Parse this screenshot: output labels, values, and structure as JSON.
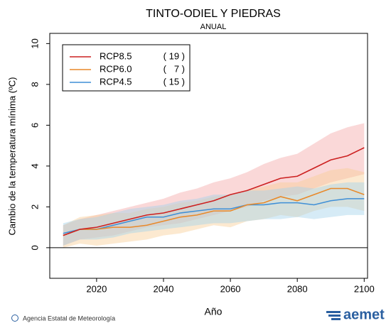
{
  "chart_data": {
    "type": "line",
    "title": "TINTO-ODIEL Y PIEDRAS",
    "subtitle": "ANUAL",
    "y_label": "Cambio de la temperatura mínima (ºC)",
    "x_label": "Año",
    "footer": "Agencia Estatal de Meteorología",
    "logo": "aemet",
    "x": [
      2010,
      2015,
      2020,
      2025,
      2030,
      2035,
      2040,
      2045,
      2050,
      2055,
      2060,
      2065,
      2070,
      2075,
      2080,
      2085,
      2090,
      2095,
      2100
    ],
    "xlim": [
      2006,
      2101
    ],
    "xticks": [
      2020,
      2040,
      2060,
      2080,
      2100
    ],
    "ylim": [
      -1.5,
      10.5
    ],
    "yticks": [
      0,
      2,
      4,
      6,
      8,
      10
    ],
    "hline": 0,
    "series": [
      {
        "name": "RCP8.5",
        "legend_count": "( 19 )",
        "color": "#cc2020",
        "band_color": "#f5a8a8",
        "values": [
          0.6,
          0.9,
          1.0,
          1.2,
          1.4,
          1.6,
          1.7,
          1.9,
          2.1,
          2.3,
          2.6,
          2.8,
          3.1,
          3.4,
          3.5,
          3.9,
          4.3,
          4.5,
          4.9
        ],
        "low": [
          0.1,
          0.4,
          0.5,
          0.6,
          0.8,
          1.0,
          1.1,
          1.2,
          1.4,
          1.6,
          1.8,
          2.0,
          2.3,
          2.5,
          2.6,
          2.9,
          3.2,
          3.4,
          3.6
        ],
        "high": [
          1.1,
          1.4,
          1.6,
          1.8,
          2.0,
          2.2,
          2.4,
          2.7,
          2.9,
          3.2,
          3.4,
          3.7,
          4.1,
          4.4,
          4.6,
          5.1,
          5.6,
          5.9,
          6.1
        ]
      },
      {
        "name": "RCP6.0",
        "legend_count": "(   7 )",
        "color": "#e8892a",
        "band_color": "#f9cf97",
        "values": [
          0.6,
          0.9,
          0.9,
          1.0,
          1.0,
          1.1,
          1.3,
          1.5,
          1.6,
          1.8,
          1.8,
          2.1,
          2.2,
          2.5,
          2.3,
          2.6,
          2.9,
          2.9,
          2.6
        ],
        "low": [
          0.0,
          0.2,
          0.1,
          0.2,
          0.3,
          0.4,
          0.6,
          0.7,
          0.9,
          1.1,
          1.0,
          1.3,
          1.4,
          1.6,
          1.5,
          1.8,
          2.0,
          2.0,
          1.8
        ],
        "high": [
          1.1,
          1.5,
          1.6,
          1.7,
          1.7,
          1.9,
          2.0,
          2.2,
          2.3,
          2.5,
          2.6,
          2.8,
          3.0,
          3.2,
          3.2,
          3.5,
          3.8,
          3.9,
          3.7
        ]
      },
      {
        "name": "RCP4.5",
        "legend_count": "( 15 )",
        "color": "#3f8fd6",
        "band_color": "#a3d3ec",
        "values": [
          0.7,
          0.9,
          0.9,
          1.1,
          1.3,
          1.5,
          1.5,
          1.7,
          1.8,
          1.9,
          1.9,
          2.1,
          2.1,
          2.2,
          2.2,
          2.1,
          2.3,
          2.4,
          2.4
        ],
        "low": [
          0.1,
          0.4,
          0.4,
          0.5,
          0.7,
          0.8,
          0.9,
          1.0,
          1.1,
          1.2,
          1.2,
          1.3,
          1.4,
          1.4,
          1.5,
          1.4,
          1.5,
          1.6,
          1.6
        ],
        "high": [
          1.2,
          1.4,
          1.5,
          1.7,
          1.9,
          2.0,
          2.1,
          2.3,
          2.4,
          2.6,
          2.6,
          2.8,
          2.8,
          2.9,
          3.0,
          2.9,
          3.1,
          3.2,
          3.2
        ]
      }
    ]
  }
}
